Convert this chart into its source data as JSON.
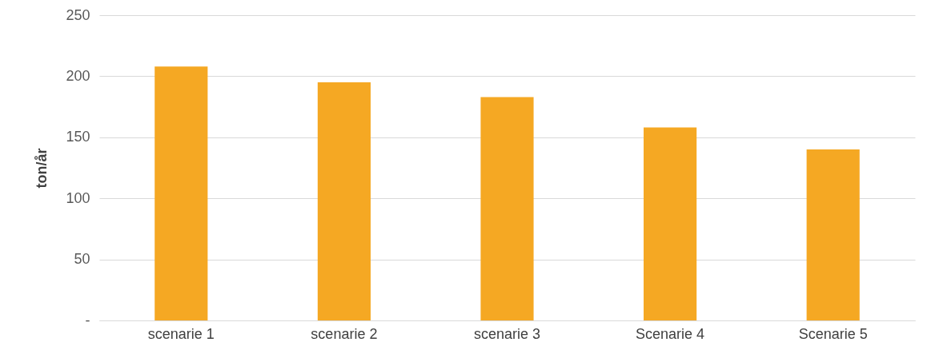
{
  "chart_data": {
    "type": "bar",
    "ylabel": "ton/år",
    "categories": [
      "scenarie 1",
      "scenarie 2",
      "scenarie 3",
      "Scenarie 4",
      "Scenarie 5"
    ],
    "values": [
      208,
      195,
      183,
      158,
      140
    ],
    "color": "#f5a823",
    "ylim": [
      0,
      250
    ],
    "yticks": [
      {
        "value": 0,
        "label": "-"
      },
      50,
      100,
      150,
      200,
      250
    ],
    "grid": "y"
  }
}
